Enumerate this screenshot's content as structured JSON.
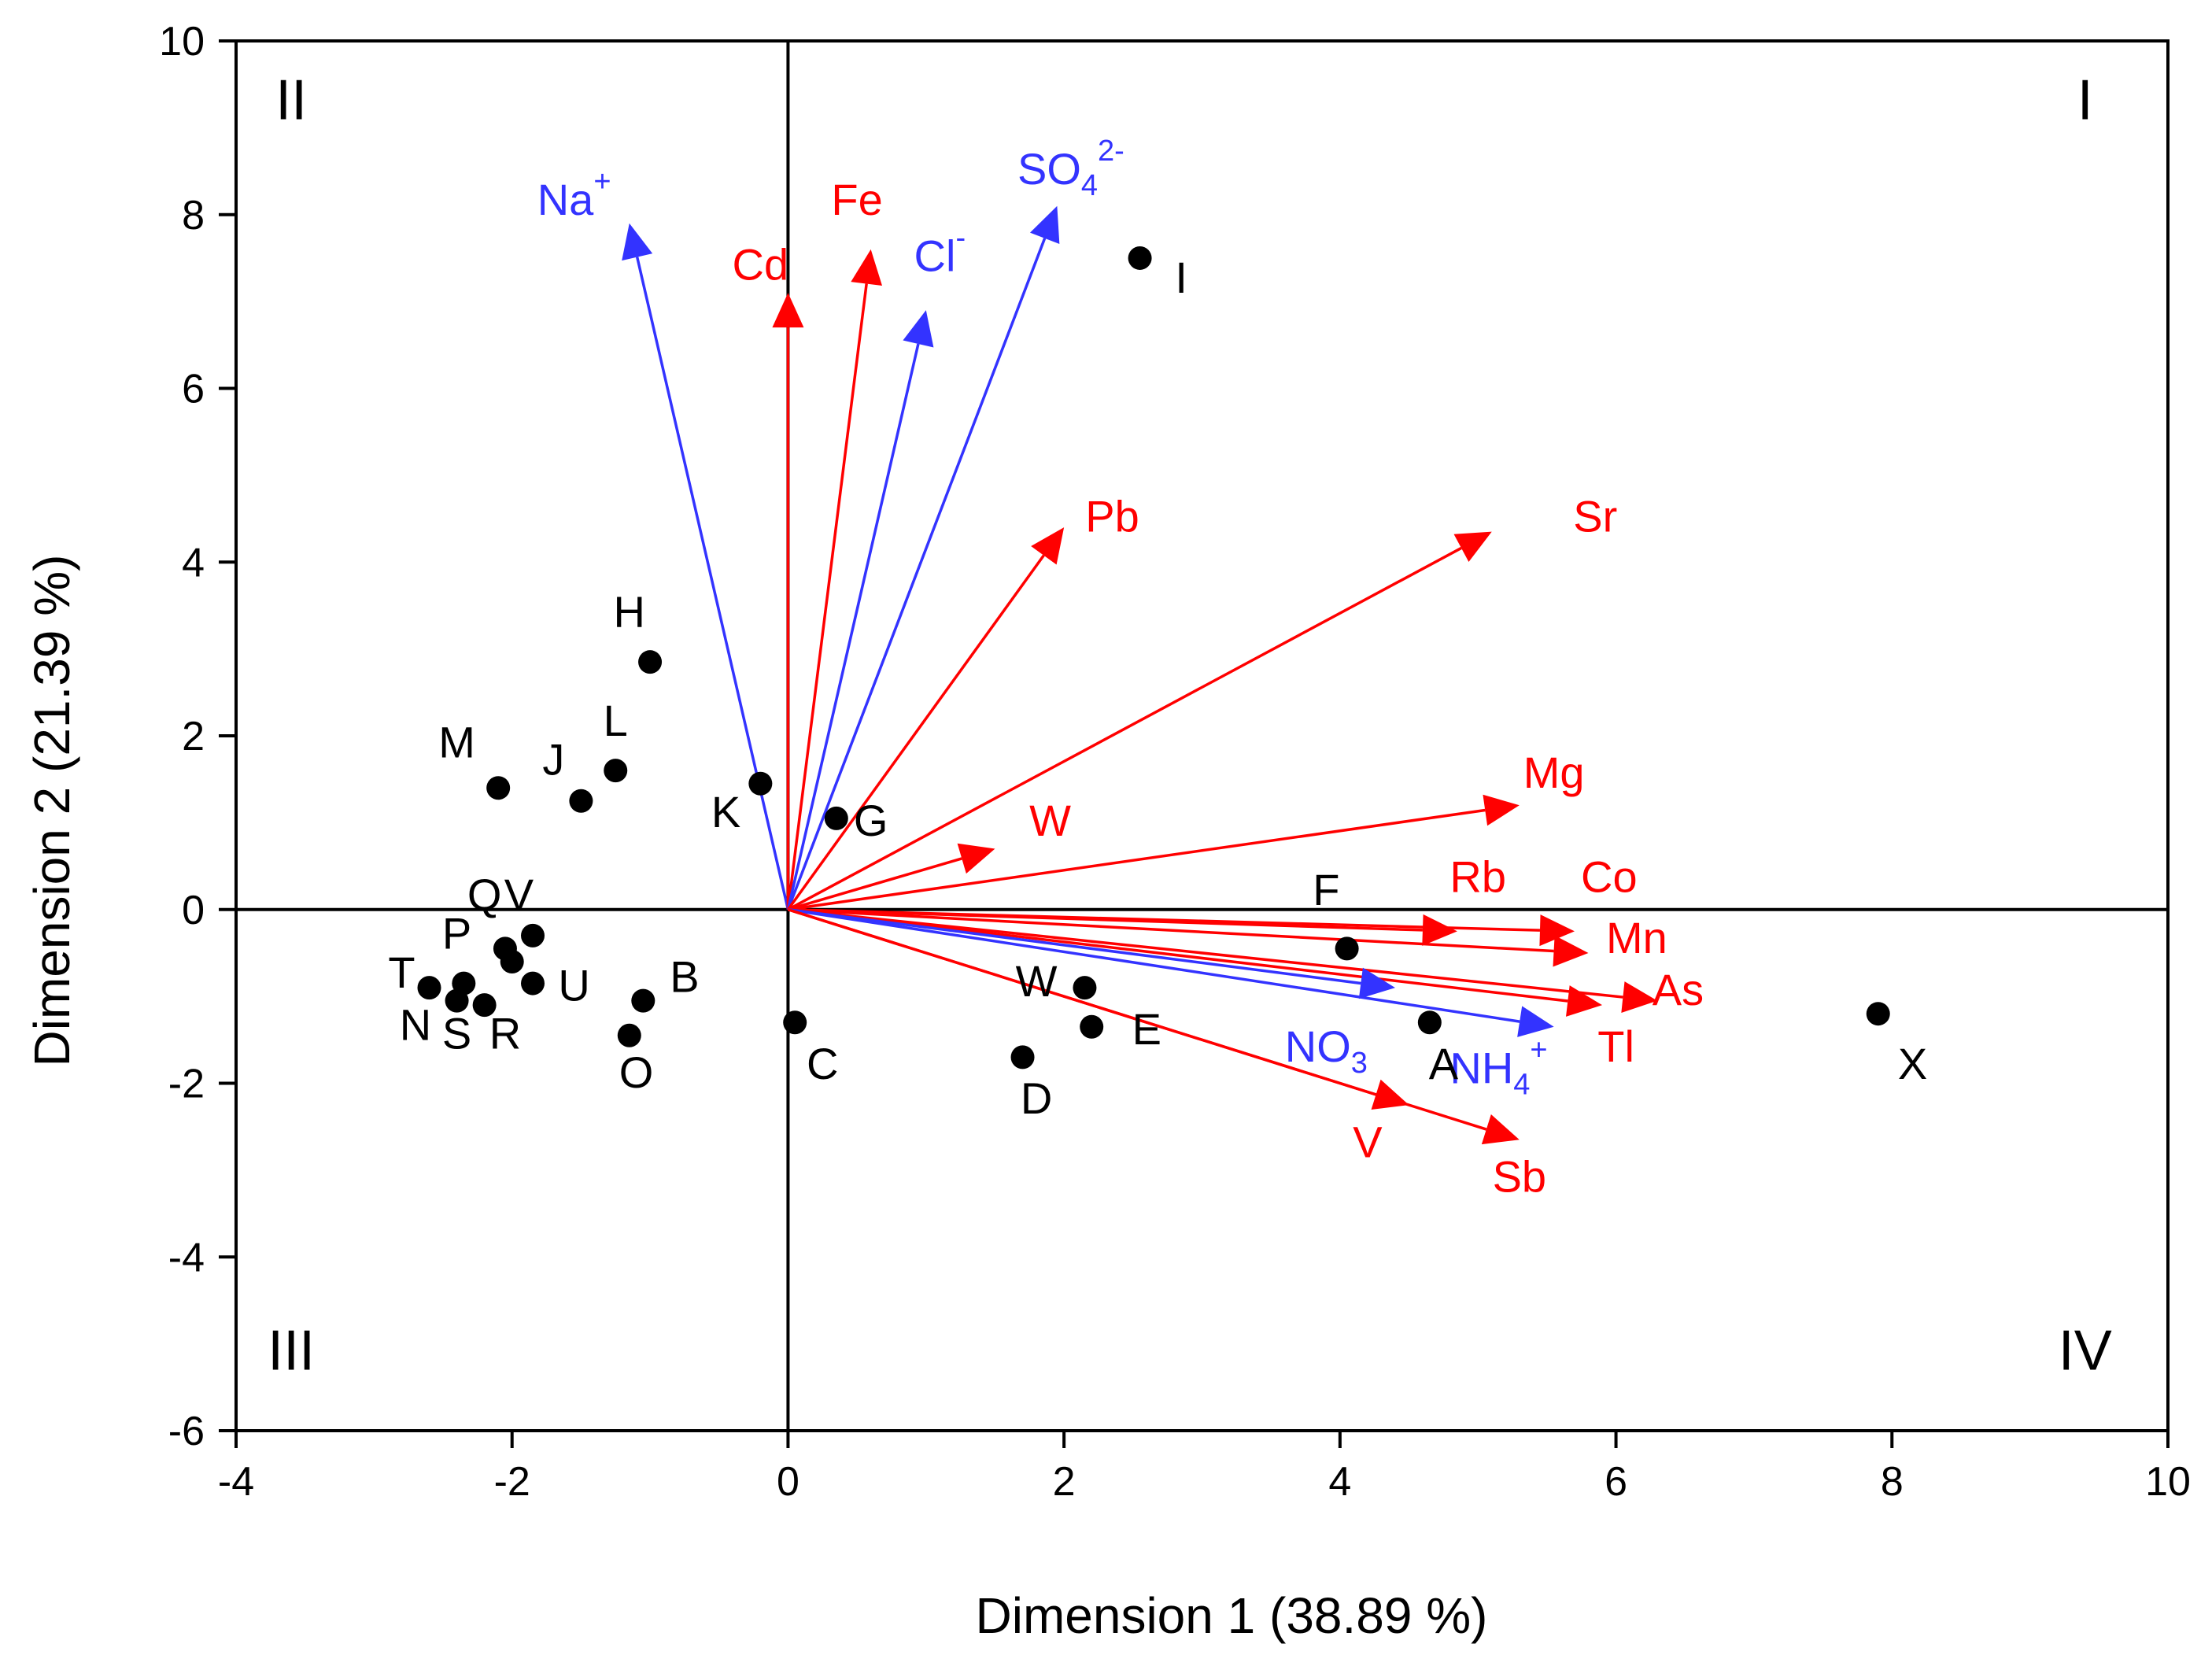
{
  "chart_data": {
    "type": "biplot",
    "xlabel": "Dimension 1 (38.89 %)",
    "ylabel": "Dimension 2 (21.39 %)",
    "xlim": [
      -4,
      10
    ],
    "ylim": [
      -6,
      10
    ],
    "xticks": [
      -4,
      -2,
      0,
      2,
      4,
      6,
      8,
      10
    ],
    "yticks": [
      -6,
      -4,
      -2,
      0,
      2,
      4,
      6,
      8,
      10
    ],
    "xtick_labels": [
      "-4",
      "-2",
      "0",
      "2",
      "4",
      "6",
      "8",
      "10"
    ],
    "ytick_labels": [
      "-6",
      "-4",
      "-2",
      "0",
      "2",
      "4",
      "6",
      "8",
      "10"
    ],
    "quadrants": [
      {
        "label": "II",
        "x": -3.6,
        "y": 9.1
      },
      {
        "label": "I",
        "x": 9.4,
        "y": 9.1
      },
      {
        "label": "III",
        "x": -3.6,
        "y": -5.3
      },
      {
        "label": "IV",
        "x": 9.4,
        "y": -5.3
      }
    ],
    "colors": {
      "metal": "#ff0000",
      "ion": "#3333ff",
      "point": "#000000"
    },
    "points": [
      {
        "label": "I",
        "x": 2.55,
        "y": 7.5,
        "lx": 2.85,
        "ly": 7.1
      },
      {
        "label": "H",
        "x": -1.0,
        "y": 2.85,
        "lx": -1.15,
        "ly": 3.25
      },
      {
        "label": "L",
        "x": -1.25,
        "y": 1.6,
        "lx": -1.25,
        "ly": 2.0
      },
      {
        "label": "M",
        "x": -2.1,
        "y": 1.4,
        "lx": -2.4,
        "ly": 1.75
      },
      {
        "label": "J",
        "x": -1.5,
        "y": 1.25,
        "lx": -1.7,
        "ly": 1.55
      },
      {
        "label": "K",
        "x": -0.2,
        "y": 1.45,
        "lx": -0.45,
        "ly": 0.95
      },
      {
        "label": "G",
        "x": 0.35,
        "y": 1.05,
        "lx": 0.6,
        "ly": 0.85
      },
      {
        "label": "F",
        "x": 4.05,
        "y": -0.45,
        "lx": 3.9,
        "ly": 0.05
      },
      {
        "label": "W",
        "x": 2.15,
        "y": -0.9,
        "lx": 1.8,
        "ly": -1.0
      },
      {
        "label": "E",
        "x": 2.2,
        "y": -1.35,
        "lx": 2.6,
        "ly": -1.55
      },
      {
        "label": "D",
        "x": 1.7,
        "y": -1.7,
        "lx": 1.8,
        "ly": -2.35
      },
      {
        "label": "C",
        "x": 0.05,
        "y": -1.3,
        "lx": 0.25,
        "ly": -1.95
      },
      {
        "label": "A",
        "x": 4.65,
        "y": -1.3,
        "lx": 4.75,
        "ly": -1.95
      },
      {
        "label": "X",
        "x": 7.9,
        "y": -1.2,
        "lx": 8.15,
        "ly": -1.95
      },
      {
        "label": "B",
        "x": -1.05,
        "y": -1.05,
        "lx": -0.75,
        "ly": -0.95
      },
      {
        "label": "O",
        "x": -1.15,
        "y": -1.45,
        "lx": -1.1,
        "ly": -2.05
      },
      {
        "label": "U",
        "x": -1.85,
        "y": -0.85,
        "lx": -1.55,
        "ly": -1.05
      },
      {
        "label": "V",
        "x": -1.85,
        "y": -0.3,
        "lx": -1.95,
        "ly": 0.0
      },
      {
        "label": "Q",
        "x": -2.05,
        "y": -0.45,
        "lx": -2.2,
        "ly": 0.0
      },
      {
        "label": "P",
        "x": -2.0,
        "y": -0.6,
        "lx": -2.4,
        "ly": -0.45
      },
      {
        "label": "T",
        "x": -2.6,
        "y": -0.9,
        "lx": -2.8,
        "ly": -0.9
      },
      {
        "label": "N",
        "x": -2.4,
        "y": -1.05,
        "lx": -2.7,
        "ly": -1.5
      },
      {
        "label": "S",
        "x": -2.35,
        "y": -0.85,
        "lx": -2.4,
        "ly": -1.6
      },
      {
        "label": "R",
        "x": -2.2,
        "y": -1.1,
        "lx": -2.05,
        "ly": -1.6
      }
    ],
    "vectors": [
      {
        "label": "Na",
        "sup": "+",
        "sub": "",
        "group": "ion",
        "x": -1.15,
        "y": 7.9,
        "lx": -1.55,
        "ly": 8.0
      },
      {
        "label": "Cd",
        "sup": "",
        "sub": "",
        "group": "metal",
        "x": 0.0,
        "y": 7.1,
        "lx": -0.2,
        "ly": 7.25
      },
      {
        "label": "Fe",
        "sup": "",
        "sub": "",
        "group": "metal",
        "x": 0.6,
        "y": 7.6,
        "lx": 0.5,
        "ly": 8.0
      },
      {
        "label": "Cl",
        "sup": "-",
        "sub": "",
        "group": "ion",
        "x": 1.0,
        "y": 6.9,
        "lx": 1.1,
        "ly": 7.35
      },
      {
        "label": "SO",
        "sup": "2-",
        "sub": "4",
        "group": "ion",
        "x": 1.95,
        "y": 8.1,
        "lx": 2.05,
        "ly": 8.35
      },
      {
        "label": "Pb",
        "sup": "",
        "sub": "",
        "group": "metal",
        "x": 2.0,
        "y": 4.4,
        "lx": 2.35,
        "ly": 4.35
      },
      {
        "label": "Sr",
        "sup": "",
        "sub": "",
        "group": "metal",
        "x": 5.1,
        "y": 4.35,
        "lx": 5.85,
        "ly": 4.35
      },
      {
        "label": "W",
        "sup": "",
        "sub": "",
        "group": "metal",
        "x": 1.5,
        "y": 0.7,
        "lx": 1.9,
        "ly": 0.85
      },
      {
        "label": "Mg",
        "sup": "",
        "sub": "",
        "group": "metal",
        "x": 5.3,
        "y": 1.2,
        "lx": 5.55,
        "ly": 1.4
      },
      {
        "label": "Rb",
        "sup": "",
        "sub": "",
        "group": "metal",
        "x": 4.85,
        "y": -0.25,
        "lx": 5.0,
        "ly": 0.2
      },
      {
        "label": "Co",
        "sup": "",
        "sub": "",
        "group": "metal",
        "x": 5.7,
        "y": -0.25,
        "lx": 5.95,
        "ly": 0.2
      },
      {
        "label": "Mn",
        "sup": "",
        "sub": "",
        "group": "metal",
        "x": 5.8,
        "y": -0.5,
        "lx": 6.15,
        "ly": -0.5
      },
      {
        "label": "Tl",
        "sup": "",
        "sub": "",
        "group": "metal",
        "x": 5.9,
        "y": -1.1,
        "lx": 6.0,
        "ly": -1.75
      },
      {
        "label": "As",
        "sup": "",
        "sub": "",
        "group": "metal",
        "x": 6.3,
        "y": -1.05,
        "lx": 6.45,
        "ly": -1.1
      },
      {
        "label": "NO",
        "sup": "",
        "sub": "3",
        "group": "ion",
        "x": 4.4,
        "y": -0.9,
        "lx": 3.9,
        "ly": -1.75
      },
      {
        "label": "NH",
        "sup": "+",
        "sub": "4",
        "group": "ion",
        "x": 5.55,
        "y": -1.35,
        "lx": 5.15,
        "ly": -2.0
      },
      {
        "label": "V",
        "sup": "",
        "sub": "",
        "group": "metal",
        "x": 4.5,
        "y": -2.25,
        "lx": 4.2,
        "ly": -2.85
      },
      {
        "label": "Sb",
        "sup": "",
        "sub": "",
        "group": "metal",
        "x": 5.3,
        "y": -2.65,
        "lx": 5.3,
        "ly": -3.25
      }
    ]
  }
}
